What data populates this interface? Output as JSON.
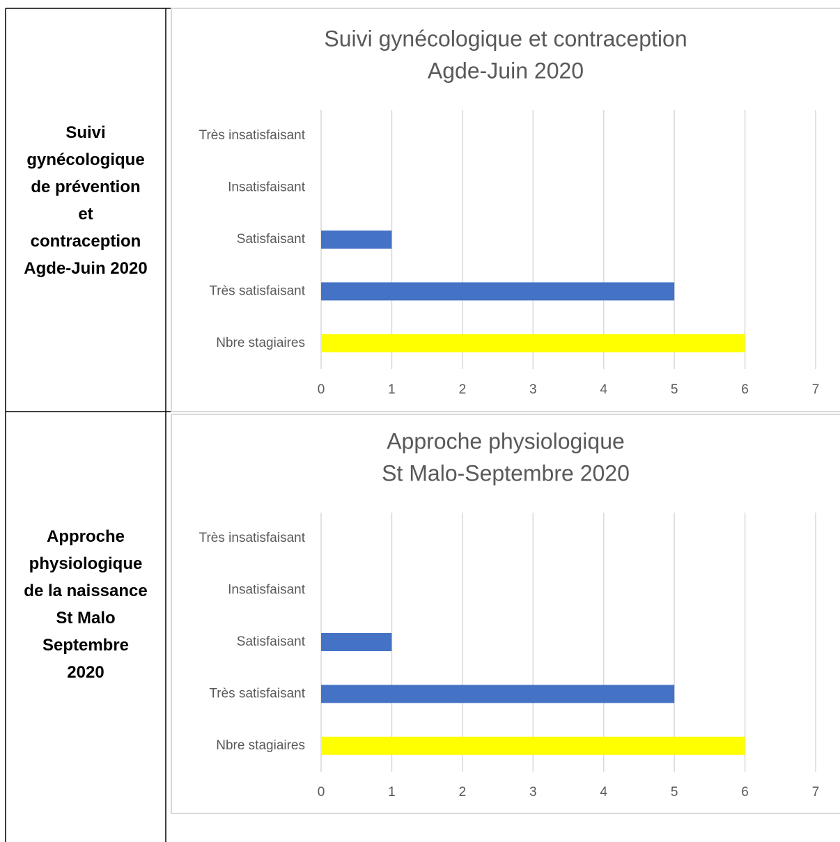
{
  "rows": [
    {
      "label": [
        "Suivi",
        "gynécologique",
        "de prévention",
        "et",
        "contraception",
        "Agde-Juin 2020"
      ],
      "chart": {
        "type": "bar",
        "orientation": "horizontal",
        "title": [
          "Suivi gynécologique et contraception",
          "Agde-Juin 2020"
        ],
        "categories": [
          "Très insatisfaisant",
          "Insatisfaisant",
          "Satisfaisant",
          "Très satisfaisant",
          "Nbre stagiaires"
        ],
        "values": [
          0,
          0,
          1,
          5,
          6
        ],
        "colors": [
          "#4472c4",
          "#4472c4",
          "#4472c4",
          "#4472c4",
          "#ffff00"
        ],
        "xlim": [
          0,
          7
        ],
        "xticks": [
          0,
          1,
          2,
          3,
          4,
          5,
          6,
          7
        ],
        "grid": true
      }
    },
    {
      "label": [
        "Approche",
        "physiologique",
        "de la naissance",
        "St Malo",
        "Septembre",
        "2020"
      ],
      "chart": {
        "type": "bar",
        "orientation": "horizontal",
        "title": [
          "Approche physiologique",
          "St Malo-Septembre 2020"
        ],
        "categories": [
          "Très insatisfaisant",
          "Insatisfaisant",
          "Satisfaisant",
          "Très satisfaisant",
          "Nbre stagiaires"
        ],
        "values": [
          0,
          0,
          1,
          5,
          6
        ],
        "colors": [
          "#4472c4",
          "#4472c4",
          "#4472c4",
          "#4472c4",
          "#ffff00"
        ],
        "xlim": [
          0,
          7
        ],
        "xticks": [
          0,
          1,
          2,
          3,
          4,
          5,
          6,
          7
        ],
        "grid": true
      }
    }
  ]
}
